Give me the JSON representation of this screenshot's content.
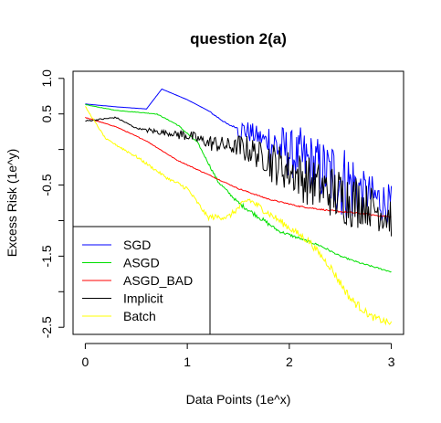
{
  "chart_data": {
    "type": "line",
    "title": "question 2(a)",
    "xlabel": "Data Points (1e^x)",
    "ylabel": "Excess Risk (1e^y)",
    "xlim": [
      -0.12,
      3.12
    ],
    "ylim": [
      -2.6,
      1.1
    ],
    "x_ticks": [
      0,
      1,
      2,
      3
    ],
    "x_tick_labels": [
      "0",
      "1",
      "2",
      "3"
    ],
    "y_ticks": [
      1.0,
      0.5,
      0.0,
      -0.5,
      -1.0,
      -1.5,
      -2.0,
      -2.5
    ],
    "y_tick_labels": [
      "1.0",
      "0.5",
      "",
      "-0.5",
      "",
      "-1.5",
      "",
      "-2.5"
    ],
    "grid": false,
    "legend_position": "bottom-left",
    "series": [
      {
        "name": "SGD",
        "color": "#0000ff",
        "noise": [
          0,
          0,
          0,
          0,
          0.01,
          0.15,
          0.35,
          0.45,
          0.55,
          0.3
        ],
        "points": [
          [
            0,
            0.64
          ],
          [
            0.3,
            0.6
          ],
          [
            0.6,
            0.57
          ],
          [
            0.75,
            0.85
          ],
          [
            1.0,
            0.7
          ],
          [
            1.2,
            0.55
          ],
          [
            1.4,
            0.35
          ],
          [
            1.6,
            0.25
          ],
          [
            1.8,
            0.1
          ],
          [
            2.0,
            -0.05
          ],
          [
            2.2,
            -0.2
          ],
          [
            2.4,
            -0.35
          ],
          [
            2.6,
            -0.5
          ],
          [
            2.8,
            -0.65
          ],
          [
            3.0,
            -0.8
          ]
        ]
      },
      {
        "name": "ASGD",
        "color": "#00e000",
        "noise": [
          0.003,
          0.003,
          0.005,
          0.01,
          0.02,
          0.03,
          0.02,
          0.015,
          0.01,
          0.01
        ],
        "points": [
          [
            0,
            0.63
          ],
          [
            0.3,
            0.55
          ],
          [
            0.7,
            0.5
          ],
          [
            0.9,
            0.35
          ],
          [
            1.1,
            0.1
          ],
          [
            1.3,
            -0.45
          ],
          [
            1.5,
            -0.75
          ],
          [
            1.7,
            -0.95
          ],
          [
            1.9,
            -1.15
          ],
          [
            2.1,
            -1.25
          ],
          [
            2.3,
            -1.35
          ],
          [
            2.5,
            -1.5
          ],
          [
            2.7,
            -1.6
          ],
          [
            3.0,
            -1.72
          ]
        ]
      },
      {
        "name": "ASGD_BAD",
        "color": "#ff0000",
        "noise": [
          0.004,
          0.005,
          0.005,
          0.006,
          0.006,
          0.008,
          0.008,
          0.01,
          0.012,
          0.012
        ],
        "points": [
          [
            0,
            0.45
          ],
          [
            0.3,
            0.32
          ],
          [
            0.6,
            0.12
          ],
          [
            0.9,
            -0.15
          ],
          [
            1.2,
            -0.35
          ],
          [
            1.5,
            -0.55
          ],
          [
            1.8,
            -0.7
          ],
          [
            2.1,
            -0.8
          ],
          [
            2.4,
            -0.86
          ],
          [
            2.7,
            -0.9
          ],
          [
            3.0,
            -0.95
          ]
        ]
      },
      {
        "name": "Implicit",
        "color": "#000000",
        "noise": [
          0.01,
          0.01,
          0.04,
          0.08,
          0.12,
          0.2,
          0.3,
          0.35,
          0.4,
          0.3
        ],
        "points": [
          [
            0,
            0.4
          ],
          [
            0.3,
            0.45
          ],
          [
            0.5,
            0.3
          ],
          [
            0.7,
            0.25
          ],
          [
            1.0,
            0.2
          ],
          [
            1.2,
            0.1
          ],
          [
            1.4,
            0.05
          ],
          [
            1.6,
            0.0
          ],
          [
            1.8,
            -0.15
          ],
          [
            2.0,
            -0.3
          ],
          [
            2.2,
            -0.45
          ],
          [
            2.4,
            -0.6
          ],
          [
            2.6,
            -0.7
          ],
          [
            2.8,
            -0.8
          ],
          [
            3.0,
            -0.95
          ]
        ]
      },
      {
        "name": "Batch",
        "color": "#ffff00",
        "noise": [
          0.01,
          0.02,
          0.02,
          0.03,
          0.04,
          0.05,
          0.05,
          0.05,
          0.06,
          0.05
        ],
        "points": [
          [
            0,
            0.6
          ],
          [
            0.2,
            0.15
          ],
          [
            0.5,
            -0.1
          ],
          [
            0.8,
            -0.4
          ],
          [
            1.0,
            -0.55
          ],
          [
            1.2,
            -0.95
          ],
          [
            1.4,
            -0.95
          ],
          [
            1.6,
            -0.7
          ],
          [
            1.8,
            -0.9
          ],
          [
            2.0,
            -1.1
          ],
          [
            2.2,
            -1.3
          ],
          [
            2.4,
            -1.65
          ],
          [
            2.6,
            -2.1
          ],
          [
            2.8,
            -2.35
          ],
          [
            3.0,
            -2.45
          ]
        ]
      }
    ]
  }
}
